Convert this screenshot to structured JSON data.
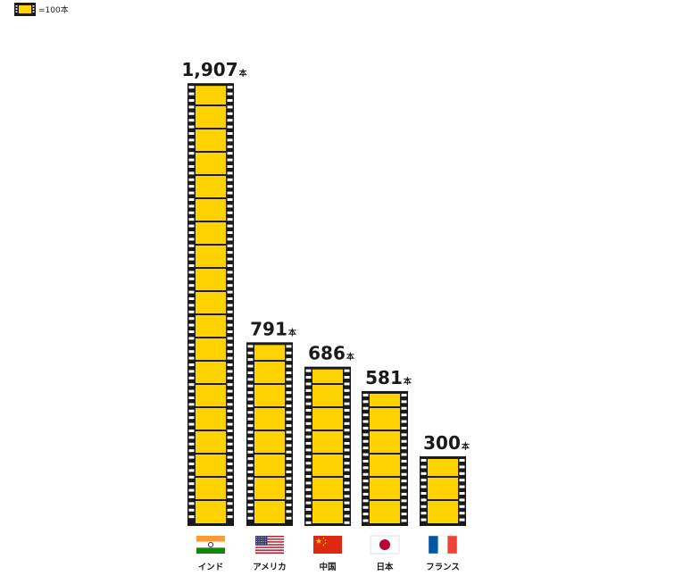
{
  "legend": {
    "label": "=100本"
  },
  "colors": {
    "film_fill": "#FFD200",
    "film_border": "#1a1a1a",
    "film_holes": "#ffffff"
  },
  "chart_data": {
    "type": "bar",
    "title": "",
    "xlabel": "",
    "ylabel": "",
    "unit": "本",
    "categories": [
      "インド",
      "アメリカ",
      "中国",
      "日本",
      "フランス"
    ],
    "values": [
      1907,
      791,
      686,
      581,
      300
    ],
    "value_labels": [
      "1,907",
      "791",
      "686",
      "581",
      "300"
    ],
    "flags": [
      "india-flag",
      "usa-flag",
      "china-flag",
      "japan-flag",
      "france-flag"
    ]
  }
}
